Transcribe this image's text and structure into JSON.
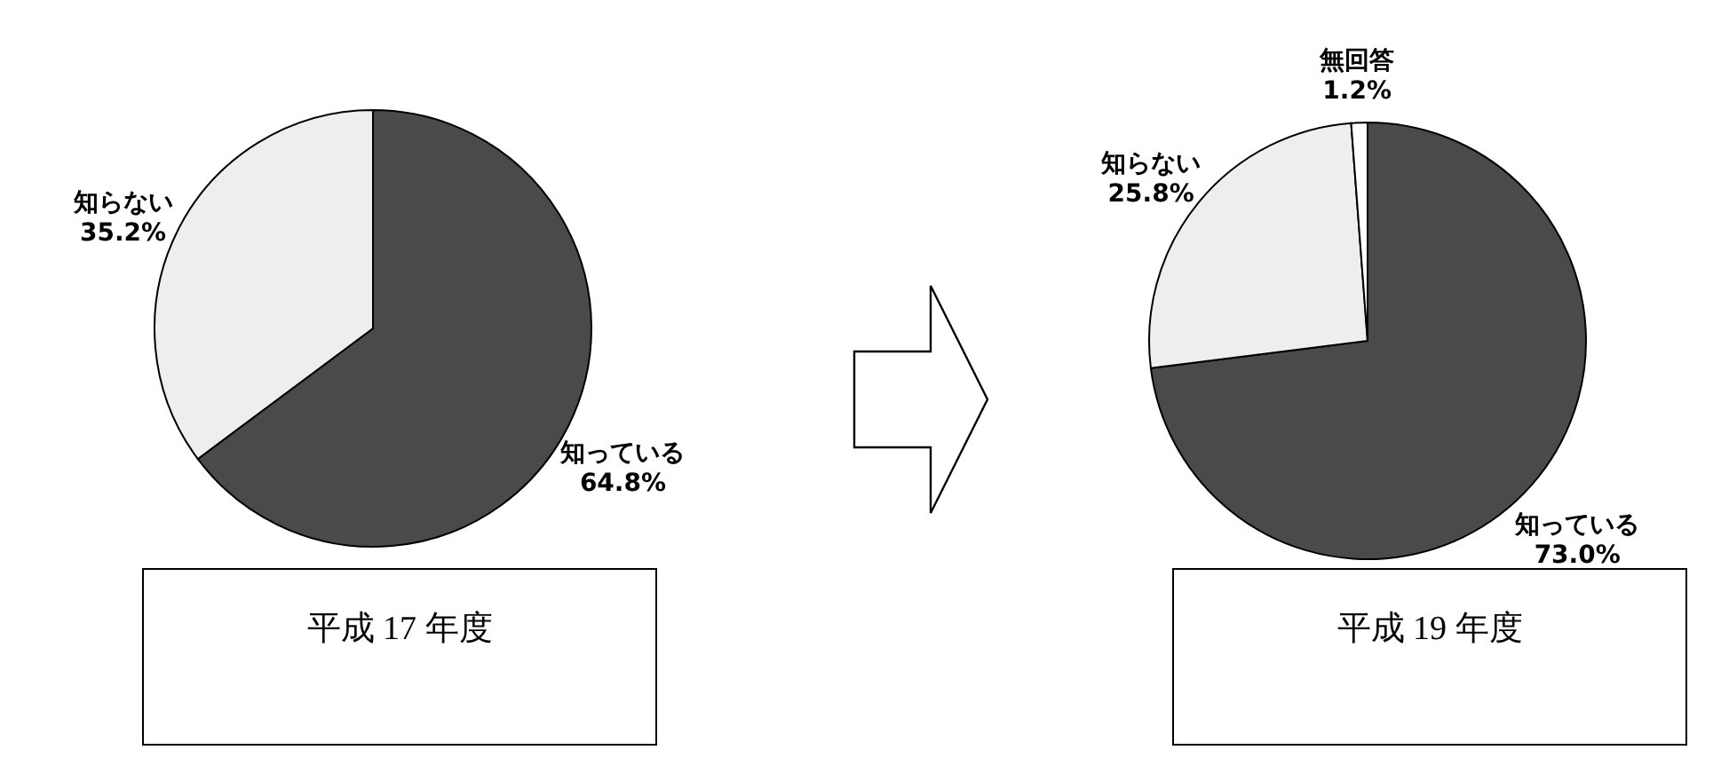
{
  "chart_data": [
    {
      "type": "pie",
      "title": "平成 17 年度",
      "categories": [
        "知っている",
        "知らない"
      ],
      "values": [
        64.8,
        35.2
      ],
      "value_labels": [
        "64.8%",
        "35.2%"
      ],
      "colors": [
        "#4a4a4a",
        "#eeeeee"
      ]
    },
    {
      "type": "pie",
      "title": "平成 19 年度",
      "categories": [
        "知っている",
        "知らない",
        "無回答"
      ],
      "values": [
        73.0,
        25.8,
        1.2
      ],
      "value_labels": [
        "73.0%",
        "25.8%",
        "1.2%"
      ],
      "colors": [
        "#4a4a4a",
        "#eeeeee",
        "#ffffff"
      ]
    }
  ]
}
